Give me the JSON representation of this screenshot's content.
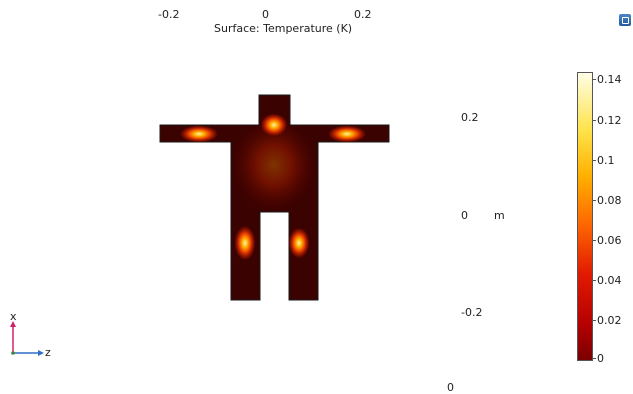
{
  "plot": {
    "title": "Surface: Temperature (K)",
    "top_axis_ticks": [
      "-0.2",
      "0",
      "0.2"
    ],
    "right_axis_ticks": [
      "0.2",
      "0",
      "-0.2"
    ],
    "right_axis_unit": "m",
    "bottom_label": "0",
    "axes_triad": {
      "x": "x",
      "z": "z"
    },
    "colorbar": {
      "min": 0,
      "max": 0.14,
      "ticks": [
        "0.14",
        "0.12",
        "0.1",
        "0.08",
        "0.06",
        "0.04",
        "0.02",
        "0"
      ]
    }
  },
  "toolbar": {
    "icon": "view-icon"
  }
}
